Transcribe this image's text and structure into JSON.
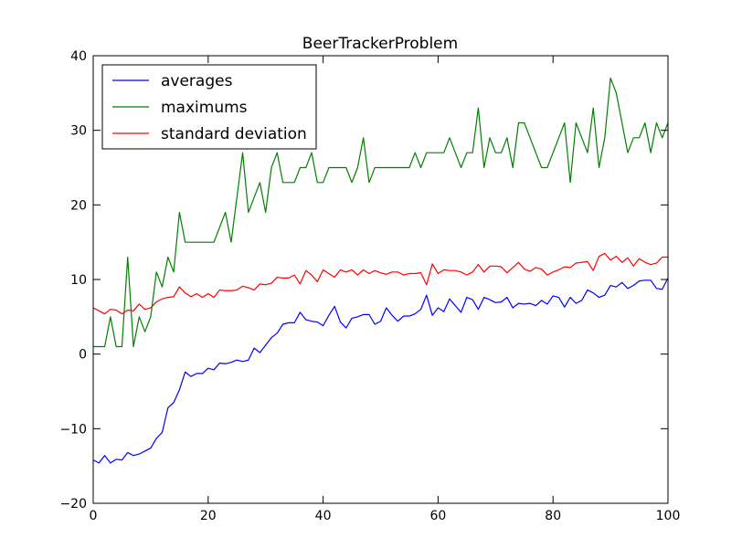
{
  "chart_data": {
    "type": "line",
    "title": "BeerTrackerProblem",
    "xlabel": "",
    "ylabel": "",
    "xlim": [
      0,
      100
    ],
    "ylim": [
      -20,
      40
    ],
    "x_ticks": [
      0,
      20,
      40,
      60,
      80,
      100
    ],
    "y_ticks": [
      -20,
      -10,
      0,
      10,
      20,
      30,
      40
    ],
    "x_tick_labels": [
      "0",
      "20",
      "40",
      "60",
      "80",
      "100"
    ],
    "y_tick_labels": [
      "−20",
      "−10",
      "0",
      "10",
      "20",
      "30",
      "40"
    ],
    "grid": false,
    "legend_position": "top-left",
    "x": [
      0,
      1,
      2,
      3,
      4,
      5,
      6,
      7,
      8,
      9,
      10,
      11,
      12,
      13,
      14,
      15,
      16,
      17,
      18,
      19,
      20,
      21,
      22,
      23,
      24,
      25,
      26,
      27,
      28,
      29,
      30,
      31,
      32,
      33,
      34,
      35,
      36,
      37,
      38,
      39,
      40,
      41,
      42,
      43,
      44,
      45,
      46,
      47,
      48,
      49,
      50,
      51,
      52,
      53,
      54,
      55,
      56,
      57,
      58,
      59,
      60,
      61,
      62,
      63,
      64,
      65,
      66,
      67,
      68,
      69,
      70,
      71,
      72,
      73,
      74,
      75,
      76,
      77,
      78,
      79,
      80,
      81,
      82,
      83,
      84,
      85,
      86,
      87,
      88,
      89,
      90,
      91,
      92,
      93,
      94,
      95,
      96,
      97,
      98,
      99,
      100
    ],
    "series": [
      {
        "name": "averages",
        "color": "#0000ff",
        "values": [
          -14.2,
          -14.6,
          -13.6,
          -14.6,
          -14.1,
          -14.2,
          -13.2,
          -13.6,
          -13.4,
          -13.0,
          -12.6,
          -11.3,
          -10.5,
          -7.2,
          -6.5,
          -4.8,
          -2.4,
          -3.0,
          -2.6,
          -2.6,
          -1.9,
          -2.1,
          -1.2,
          -1.3,
          -1.1,
          -0.8,
          -1.0,
          -0.8,
          0.8,
          0.2,
          1.2,
          2.2,
          2.8,
          4.0,
          4.2,
          4.2,
          5.6,
          4.6,
          4.4,
          4.3,
          3.8,
          5.2,
          6.4,
          4.3,
          3.5,
          4.8,
          5.0,
          5.3,
          5.3,
          4.0,
          4.4,
          6.2,
          5.2,
          4.4,
          5.1,
          5.1,
          5.4,
          6.0,
          7.9,
          5.2,
          6.2,
          5.7,
          7.4,
          6.5,
          5.6,
          7.6,
          7.3,
          6.0,
          7.6,
          7.3,
          6.9,
          7.0,
          7.6,
          6.2,
          6.8,
          6.7,
          6.8,
          6.5,
          7.2,
          6.7,
          7.8,
          7.6,
          6.3,
          7.6,
          6.8,
          7.2,
          8.6,
          8.2,
          7.6,
          7.9,
          9.2,
          9.0,
          9.6,
          8.8,
          9.2,
          9.8,
          9.9,
          9.9,
          8.8,
          8.7,
          10.2
        ]
      },
      {
        "name": "maximums",
        "color": "#008000",
        "values": [
          1,
          1,
          1,
          5,
          1,
          1,
          13,
          1,
          5,
          3,
          5,
          11,
          9,
          13,
          11,
          19,
          15,
          15,
          15,
          15,
          15,
          15,
          17,
          19,
          15,
          21,
          27,
          19,
          21,
          23,
          19,
          25,
          27,
          23,
          23,
          23,
          25,
          25,
          27,
          23,
          23,
          25,
          25,
          25,
          25,
          23,
          25,
          29,
          23,
          25,
          25,
          25,
          25,
          25,
          25,
          25,
          27,
          25,
          27,
          27,
          27,
          27,
          29,
          27,
          25,
          27,
          27,
          33,
          25,
          29,
          27,
          27,
          29,
          25,
          31,
          31,
          29,
          27,
          25,
          25,
          27,
          29,
          31,
          23,
          31,
          29,
          27,
          33,
          25,
          29,
          37,
          35,
          31,
          27,
          29,
          29,
          31,
          27,
          31,
          29,
          31
        ]
      },
      {
        "name": "standard deviation",
        "color": "#ff0000",
        "values": [
          6.2,
          5.8,
          5.4,
          6.0,
          5.9,
          5.4,
          5.9,
          5.8,
          6.7,
          6.0,
          6.2,
          7.0,
          7.4,
          7.6,
          7.7,
          9.0,
          8.2,
          7.7,
          8.1,
          7.6,
          8.1,
          7.6,
          8.6,
          8.5,
          8.5,
          8.6,
          9.1,
          8.9,
          8.6,
          9.4,
          9.3,
          9.5,
          10.3,
          10.2,
          10.2,
          10.6,
          9.4,
          11.2,
          10.6,
          9.7,
          11.3,
          10.8,
          10.3,
          11.3,
          11.0,
          11.3,
          10.6,
          11.3,
          10.8,
          11.2,
          10.9,
          10.7,
          11.0,
          11.0,
          10.6,
          10.8,
          10.8,
          10.9,
          9.3,
          12.1,
          10.8,
          11.3,
          11.2,
          11.2,
          11.0,
          10.6,
          11.0,
          12.0,
          11.0,
          11.8,
          11.8,
          11.7,
          10.9,
          11.6,
          12.3,
          11.4,
          11.1,
          11.6,
          11.4,
          10.6,
          11.0,
          11.3,
          11.7,
          11.6,
          12.2,
          12.3,
          12.4,
          11.2,
          13.1,
          13.5,
          12.6,
          13.1,
          12.3,
          12.9,
          11.8,
          12.8,
          12.3,
          12.0,
          12.2,
          13.0,
          13.0
        ]
      }
    ]
  }
}
